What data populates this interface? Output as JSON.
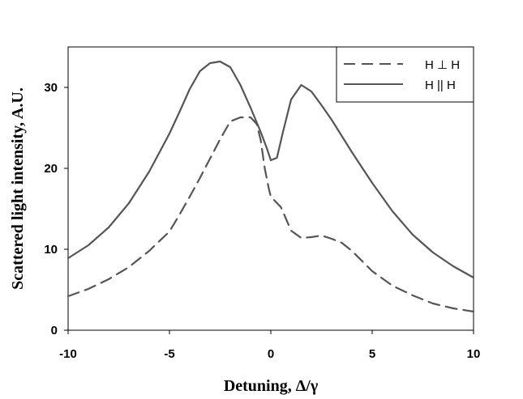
{
  "chart_data": {
    "type": "line",
    "title": "",
    "xlabel": "Detuning, Δ/γ",
    "ylabel": "Scattered light intensity, A.U.",
    "xlim": [
      -10,
      10
    ],
    "ylim": [
      0,
      35
    ],
    "x_ticks": [
      -10,
      -5,
      0,
      5,
      10
    ],
    "y_ticks": [
      0,
      10,
      20,
      30
    ],
    "x_tick_labels": [
      "-10",
      "-5",
      "0",
      "5",
      "10"
    ],
    "y_tick_labels": [
      "0",
      "10",
      "20",
      "30"
    ],
    "grid": false,
    "legend_position": "top-right",
    "series": [
      {
        "name": "H ⊥ H",
        "style": "dashed",
        "color": "#555555",
        "x": [
          -10,
          -9,
          -8,
          -7,
          -6,
          -5,
          -4.5,
          -4,
          -3.5,
          -3,
          -2.5,
          -2,
          -1.5,
          -1.2,
          -1,
          -0.7,
          -0.5,
          -0.3,
          -0.1,
          0,
          0.5,
          1,
          1.5,
          2,
          2.5,
          3,
          3.5,
          4,
          5,
          6,
          7,
          8,
          9,
          10
        ],
        "values": [
          4.2,
          5.1,
          6.3,
          7.8,
          9.8,
          12.2,
          14.3,
          16.5,
          18.8,
          21.2,
          23.6,
          25.8,
          26.3,
          26.3,
          26.3,
          25.5,
          23.5,
          20,
          17.5,
          16.5,
          15.2,
          12.3,
          11.4,
          11.5,
          11.7,
          11.3,
          10.8,
          9.8,
          7.3,
          5.5,
          4.3,
          3.3,
          2.7,
          2.3
        ]
      },
      {
        "name": "H || H",
        "style": "solid",
        "color": "#555555",
        "x": [
          -10,
          -9,
          -8,
          -7,
          -6,
          -5,
          -4.5,
          -4,
          -3.5,
          -3,
          -2.5,
          -2,
          -1.5,
          -1,
          -0.5,
          -0.2,
          0,
          0.3,
          0.6,
          1,
          1.5,
          2,
          2.5,
          3,
          4,
          5,
          6,
          7,
          8,
          9,
          10
        ],
        "values": [
          8.9,
          10.5,
          12.7,
          15.7,
          19.6,
          24.3,
          27,
          29.8,
          32,
          33,
          33.2,
          32.5,
          30.3,
          27.5,
          24.5,
          22.5,
          21,
          21.3,
          24.5,
          28.5,
          30.3,
          29.5,
          27.8,
          26,
          22,
          18.2,
          14.7,
          11.8,
          9.6,
          7.9,
          6.5
        ]
      }
    ]
  }
}
